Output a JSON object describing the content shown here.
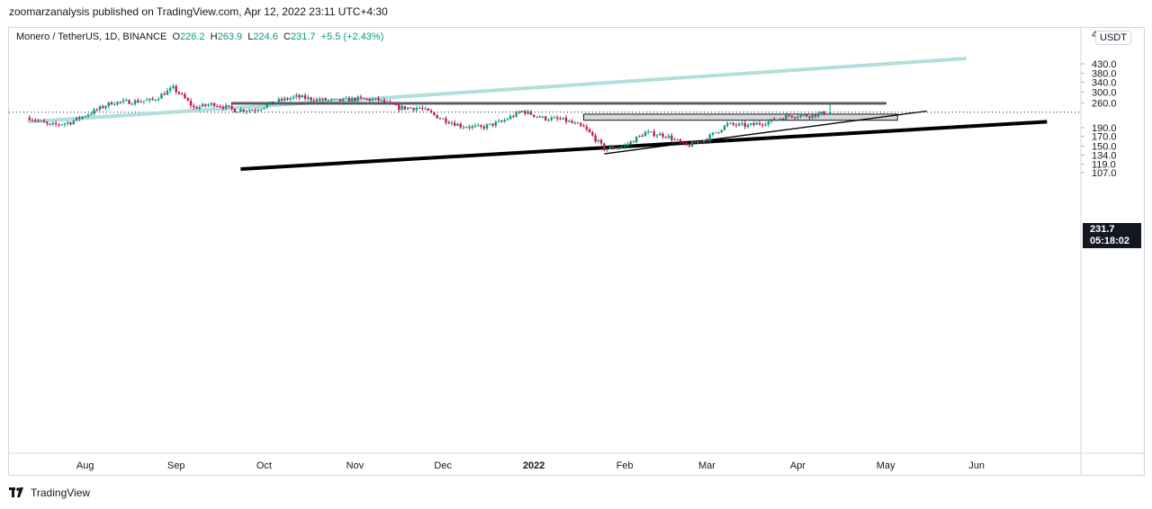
{
  "publisher_line": "zoomarzanalysis published on TradingView.com, Apr 12, 2022 23:11 UTC+4:30",
  "legend": {
    "symbol": "Monero / TetherUS, 1D, BINANCE",
    "open_label": "O",
    "open": "226.2",
    "high_label": "H",
    "high": "263.9",
    "low_label": "L",
    "low": "224.6",
    "close_label": "C",
    "close": "231.7",
    "change": "+5.5 (+2.43%)"
  },
  "unit_button": "USDT",
  "current_price": {
    "value": "231.7",
    "countdown": "05:18:02"
  },
  "brand": "TradingView",
  "colors": {
    "up": "#089981",
    "down": "#c2185b",
    "trendline_main": "#b2dfdb",
    "support": "#000000",
    "zone_fill": "#d6d6d6"
  },
  "chart_data": {
    "type": "candlestick",
    "symbol": "XMR/USDT",
    "interval": "1D",
    "y_scale": "log",
    "y_ticks": [
      "430.0",
      "380.0",
      "340.0",
      "300.0",
      "260.0",
      "190.0",
      "170.0",
      "150.0",
      "134.0",
      "119.0",
      "107.0"
    ],
    "y_ticks_partial": [
      "4"
    ],
    "x_ticks": [
      "Aug",
      "Sep",
      "Oct",
      "Nov",
      "Dec",
      "2022",
      "Feb",
      "Mar",
      "Apr",
      "May",
      "Jun"
    ],
    "ohlc_last": {
      "open": 226.2,
      "high": 263.9,
      "low": 224.6,
      "close": 231.7,
      "change": 5.5,
      "change_pct": 2.43
    },
    "close_trend": [
      [
        "2021-07-13",
        216
      ],
      [
        "2021-07-20",
        195
      ],
      [
        "2021-07-27",
        204
      ],
      [
        "2021-08-03",
        230
      ],
      [
        "2021-08-10",
        262
      ],
      [
        "2021-08-17",
        265
      ],
      [
        "2021-08-24",
        270
      ],
      [
        "2021-08-31",
        315
      ],
      [
        "2021-09-07",
        245
      ],
      [
        "2021-09-14",
        258
      ],
      [
        "2021-09-21",
        238
      ],
      [
        "2021-09-28",
        240
      ],
      [
        "2021-10-05",
        265
      ],
      [
        "2021-10-12",
        282
      ],
      [
        "2021-10-19",
        272
      ],
      [
        "2021-10-26",
        268
      ],
      [
        "2021-11-02",
        275
      ],
      [
        "2021-11-09",
        270
      ],
      [
        "2021-11-16",
        245
      ],
      [
        "2021-11-23",
        245
      ],
      [
        "2021-11-30",
        215
      ],
      [
        "2021-12-07",
        195
      ],
      [
        "2021-12-14",
        190
      ],
      [
        "2021-12-21",
        205
      ],
      [
        "2021-12-28",
        235
      ],
      [
        "2022-01-04",
        215
      ],
      [
        "2022-01-11",
        210
      ],
      [
        "2022-01-18",
        190
      ],
      [
        "2022-01-25",
        145
      ],
      [
        "2022-02-01",
        150
      ],
      [
        "2022-02-08",
        178
      ],
      [
        "2022-02-15",
        172
      ],
      [
        "2022-02-22",
        150
      ],
      [
        "2022-03-01",
        165
      ],
      [
        "2022-03-08",
        198
      ],
      [
        "2022-03-15",
        195
      ],
      [
        "2022-03-22",
        205
      ],
      [
        "2022-03-29",
        222
      ],
      [
        "2022-04-05",
        222
      ],
      [
        "2022-04-12",
        231.7
      ]
    ],
    "annotations": {
      "long_rising_trendline": [
        [
          "2021-07-13",
          205
        ],
        [
          "2022-05-28",
          460
        ]
      ],
      "major_support_trendline": [
        [
          "2021-09-23",
          112
        ],
        [
          "2022-06-25",
          205
        ]
      ],
      "minor_support_trendline": [
        [
          "2022-01-25",
          136
        ],
        [
          "2022-05-15",
          235
        ]
      ],
      "resistance_zone": {
        "from": "2021-09-20",
        "to": "2022-05-01",
        "low": 257,
        "high": 262
      },
      "supply_zone": {
        "from": "2022-01-18",
        "to": "2022-05-05",
        "low": 209,
        "high": 226
      }
    }
  }
}
